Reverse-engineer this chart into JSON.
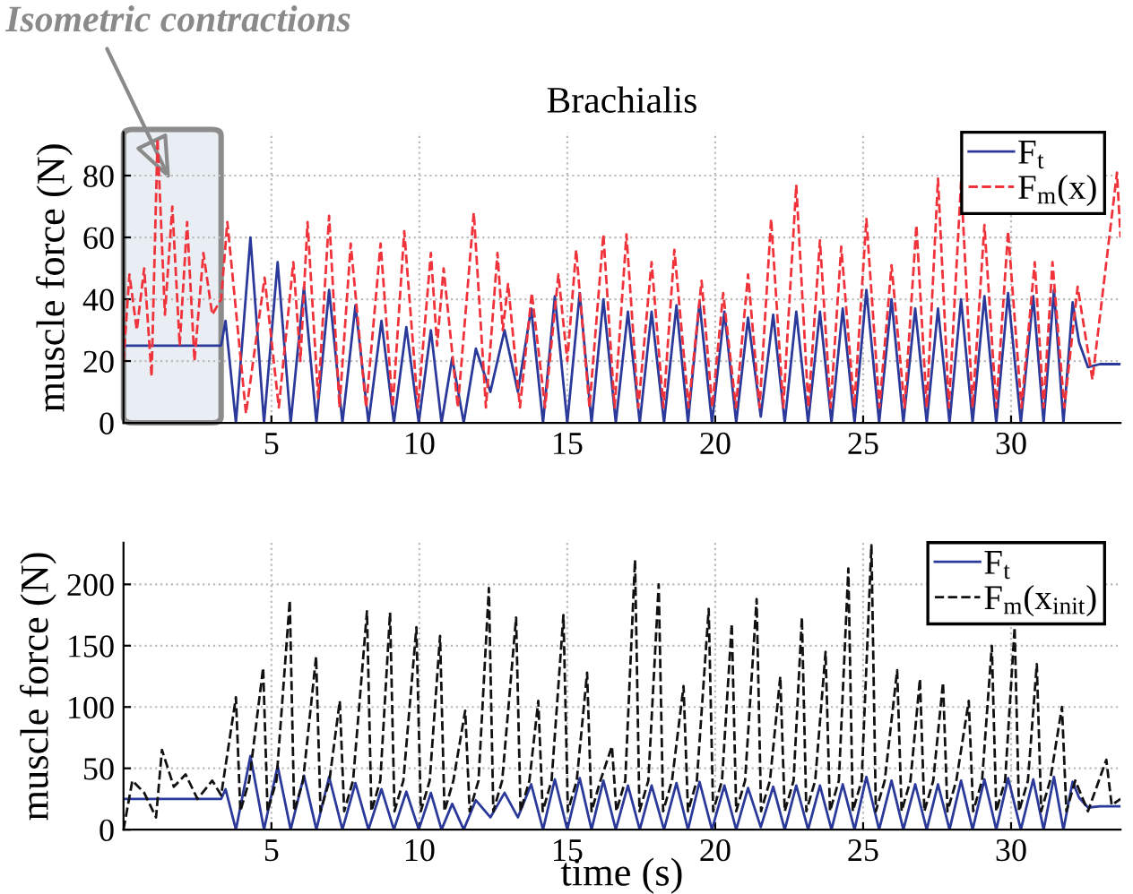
{
  "chart_data": [
    {
      "type": "line",
      "title": "Brachialis",
      "ylabel": "muscle force (N)",
      "xlim": [
        0,
        33.7
      ],
      "xticks": [
        5,
        10,
        15,
        20,
        25,
        30
      ],
      "ylim": [
        0,
        94
      ],
      "yticks": [
        0,
        20,
        40,
        60,
        80
      ],
      "grid": true,
      "legend": "top right",
      "marker": "none",
      "bands": [
        {
          "axis": "x",
          "from": 0,
          "to": 3.3,
          "label": "Isometric contractions",
          "color": "#e9eef4"
        }
      ],
      "series": [
        {
          "name": "F$_{t}$",
          "color": "#2b3a9a",
          "line_style": "solid",
          "x": [
            0,
            3.3,
            3.45,
            3.8,
            4.29,
            4.75,
            5.21,
            5.65,
            6.1,
            6.52,
            6.95,
            7.4,
            7.84,
            8.28,
            8.72,
            9.14,
            9.56,
            9.98,
            10.39,
            10.75,
            11.11,
            11.5,
            11.91,
            12.4,
            12.88,
            13.33,
            13.78,
            14.18,
            14.58,
            15.0,
            15.42,
            15.82,
            16.22,
            16.64,
            17.05,
            17.45,
            17.85,
            18.27,
            18.69,
            19.08,
            19.47,
            19.89,
            20.31,
            20.71,
            21.11,
            21.54,
            21.96,
            22.35,
            22.74,
            23.14,
            23.54,
            23.93,
            24.31,
            24.71,
            25.11,
            25.54,
            25.96,
            26.36,
            26.76,
            27.15,
            27.53,
            27.92,
            28.31,
            28.7,
            29.1,
            29.5,
            29.9,
            30.33,
            30.75,
            31.1,
            31.45,
            31.77,
            32.08,
            32.3,
            32.6,
            33.0,
            33.7
          ],
          "values": [
            25,
            25,
            33,
            0,
            60,
            0,
            52,
            0,
            44,
            0,
            43,
            0,
            38,
            0,
            33,
            0,
            31,
            0,
            30,
            0,
            21,
            0,
            24,
            10,
            30,
            10,
            37,
            0,
            41,
            0,
            42,
            0,
            40,
            0,
            36,
            0,
            36,
            0,
            38,
            0,
            39,
            0,
            36,
            0,
            34,
            2,
            35,
            0,
            36,
            0,
            36,
            0,
            37,
            0,
            43,
            0,
            40,
            0,
            37,
            0,
            37,
            0,
            40,
            0,
            41,
            0,
            42,
            0,
            41,
            0,
            43,
            0,
            39,
            26,
            18,
            19,
            19
          ]
        },
        {
          "name": "F$_{m}$(x)",
          "color": "#f0323a",
          "line_style": "dashed",
          "x": [
            0,
            0.2,
            0.45,
            0.7,
            0.95,
            1.15,
            1.4,
            1.65,
            1.9,
            2.15,
            2.4,
            2.7,
            3.0,
            3.3,
            3.51,
            4.14,
            4.77,
            5.25,
            5.74,
            5.98,
            6.22,
            6.58,
            6.95,
            7.3,
            7.68,
            8.2,
            8.69,
            9.1,
            9.49,
            9.95,
            10.39,
            10.6,
            10.82,
            11.3,
            11.84,
            12.25,
            12.64,
            12.82,
            13.0,
            13.4,
            13.8,
            14.25,
            14.7,
            15.0,
            15.3,
            15.75,
            16.22,
            16.6,
            17.0,
            17.4,
            17.85,
            18.25,
            18.62,
            19.1,
            19.54,
            19.9,
            20.27,
            20.7,
            21.11,
            21.5,
            21.89,
            22.3,
            22.74,
            23.15,
            23.54,
            23.9,
            24.26,
            24.7,
            25.11,
            25.55,
            25.96,
            26.4,
            26.8,
            27.15,
            27.53,
            27.9,
            28.31,
            28.7,
            29.1,
            29.5,
            29.9,
            30.35,
            30.8,
            31.1,
            31.4,
            31.8,
            32.25,
            32.75,
            33.58,
            33.7
          ],
          "values": [
            20,
            48,
            30,
            50,
            15,
            92,
            35,
            70,
            25,
            65,
            20,
            55,
            35,
            40,
            65,
            3,
            47,
            5,
            52,
            20,
            65,
            8,
            67,
            5,
            58,
            5,
            58,
            5,
            62,
            5,
            55,
            25,
            50,
            5,
            68,
            5,
            55,
            30,
            45,
            5,
            42,
            5,
            48,
            20,
            56,
            5,
            61,
            5,
            61,
            5,
            52,
            5,
            56,
            5,
            46,
            5,
            42,
            5,
            48,
            5,
            66,
            5,
            77,
            5,
            59,
            5,
            57,
            5,
            66,
            5,
            51,
            5,
            64,
            5,
            79,
            5,
            78,
            5,
            64,
            5,
            62,
            5,
            52,
            5,
            52,
            5,
            44,
            14,
            81,
            60
          ]
        }
      ]
    },
    {
      "type": "line",
      "xlabel": "time (s)",
      "ylabel": "muscle force (N)",
      "xlim": [
        0,
        33.7
      ],
      "xticks": [
        5,
        10,
        15,
        20,
        25,
        30
      ],
      "ylim": [
        0,
        234
      ],
      "yticks": [
        0,
        50,
        100,
        150,
        200
      ],
      "grid": true,
      "legend": "top right",
      "marker": "none",
      "series": [
        {
          "name": "F$_{t}$",
          "color": "#2b3a9a",
          "line_style": "solid",
          "x": [
            0,
            3.3,
            3.45,
            3.8,
            4.29,
            4.75,
            5.21,
            5.65,
            6.1,
            6.52,
            6.95,
            7.4,
            7.84,
            8.28,
            8.72,
            9.14,
            9.56,
            9.98,
            10.39,
            10.75,
            11.11,
            11.5,
            11.91,
            12.4,
            12.88,
            13.33,
            13.78,
            14.18,
            14.58,
            15.0,
            15.42,
            15.82,
            16.22,
            16.64,
            17.05,
            17.45,
            17.85,
            18.27,
            18.69,
            19.08,
            19.47,
            19.89,
            20.31,
            20.71,
            21.11,
            21.54,
            21.96,
            22.35,
            22.74,
            23.14,
            23.54,
            23.93,
            24.31,
            24.71,
            25.11,
            25.54,
            25.96,
            26.36,
            26.76,
            27.15,
            27.53,
            27.92,
            28.31,
            28.7,
            29.1,
            29.5,
            29.9,
            30.33,
            30.75,
            31.1,
            31.45,
            31.77,
            32.08,
            32.3,
            32.6,
            33.0,
            33.7
          ],
          "values": [
            25,
            25,
            33,
            0,
            60,
            0,
            52,
            0,
            44,
            0,
            43,
            0,
            38,
            0,
            33,
            0,
            31,
            0,
            30,
            0,
            21,
            0,
            24,
            10,
            30,
            10,
            37,
            0,
            41,
            0,
            42,
            0,
            40,
            0,
            36,
            0,
            36,
            0,
            38,
            0,
            39,
            0,
            36,
            0,
            34,
            2,
            35,
            0,
            36,
            0,
            36,
            0,
            37,
            0,
            43,
            0,
            40,
            0,
            37,
            0,
            37,
            0,
            40,
            0,
            41,
            0,
            42,
            0,
            41,
            0,
            43,
            0,
            39,
            26,
            18,
            19,
            19
          ]
        },
        {
          "name": "F$_{m}$(x$_{init}$)",
          "color": "#111111",
          "line_style": "dashed",
          "x": [
            0,
            0.3,
            0.7,
            1.1,
            1.3,
            1.7,
            2.1,
            2.5,
            3.0,
            3.3,
            3.8,
            3.95,
            4.25,
            4.72,
            4.87,
            5.17,
            5.62,
            5.77,
            6.07,
            6.51,
            6.66,
            6.96,
            7.31,
            7.46,
            7.76,
            8.23,
            8.38,
            8.68,
            9.01,
            9.16,
            9.46,
            9.9,
            10.05,
            10.35,
            10.7,
            10.85,
            11.15,
            11.55,
            11.7,
            12.0,
            12.35,
            12.5,
            12.8,
            13.27,
            13.42,
            13.72,
            14.02,
            14.17,
            14.47,
            14.87,
            15.02,
            15.32,
            15.67,
            15.82,
            16.12,
            16.51,
            16.66,
            16.96,
            17.29,
            17.44,
            17.74,
            18.09,
            18.24,
            18.54,
            18.93,
            19.08,
            19.38,
            19.78,
            19.93,
            20.23,
            20.56,
            20.71,
            21.01,
            21.4,
            21.55,
            21.85,
            22.2,
            22.35,
            22.65,
            22.93,
            23.08,
            23.38,
            23.73,
            23.88,
            24.18,
            24.5,
            24.65,
            24.95,
            25.28,
            25.43,
            25.73,
            26.15,
            26.3,
            26.6,
            26.92,
            27.07,
            27.37,
            27.7,
            27.85,
            28.15,
            28.57,
            28.72,
            29.02,
            29.35,
            29.5,
            29.8,
            30.12,
            30.27,
            30.57,
            30.87,
            31.02,
            31.32,
            31.72,
            31.87,
            32.17,
            32.6,
            33.22,
            33.4,
            33.7
          ],
          "values": [
            0,
            40,
            30,
            10,
            65,
            35,
            45,
            25,
            40,
            28,
            108,
            15,
            40,
            132,
            15,
            40,
            187,
            15,
            40,
            141,
            15,
            40,
            105,
            15,
            40,
            178,
            15,
            40,
            177,
            15,
            40,
            165,
            15,
            40,
            158,
            15,
            40,
            97,
            15,
            40,
            197,
            15,
            40,
            173,
            15,
            40,
            105,
            15,
            40,
            175,
            15,
            40,
            128,
            15,
            40,
            68,
            15,
            40,
            220,
            15,
            40,
            200,
            15,
            40,
            117,
            15,
            40,
            180,
            15,
            40,
            168,
            15,
            40,
            188,
            15,
            40,
            125,
            15,
            40,
            173,
            15,
            40,
            145,
            15,
            40,
            213,
            15,
            40,
            232,
            15,
            40,
            130,
            15,
            40,
            123,
            15,
            40,
            120,
            15,
            40,
            105,
            15,
            40,
            150,
            15,
            40,
            165,
            15,
            40,
            135,
            15,
            40,
            100,
            15,
            40,
            15,
            57,
            20,
            25
          ]
        }
      ]
    }
  ]
}
